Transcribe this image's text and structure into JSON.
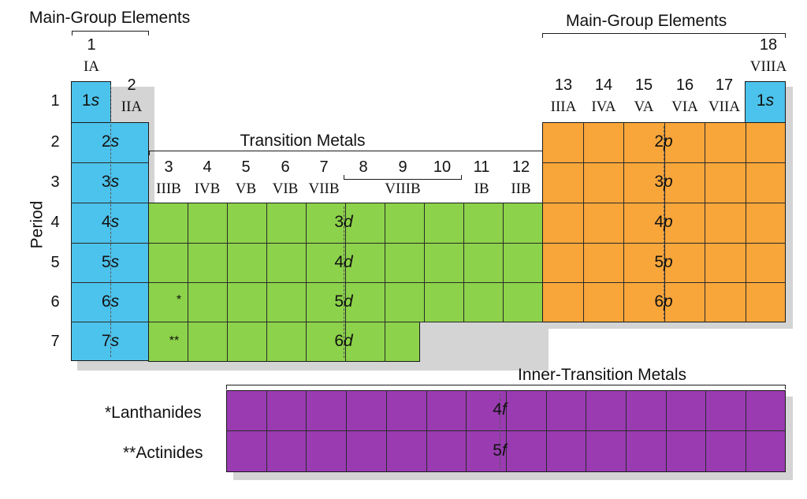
{
  "labels": {
    "main_group_left": "Main-Group Elements",
    "main_group_right": "Main-Group Elements",
    "transition_metals": "Transition Metals",
    "inner_transition": "Inner-Transition Metals",
    "period_axis": "Period",
    "lanthanides": "*Lanthanides",
    "actinides": "**Actinides",
    "lanthanide_marker": "*",
    "actinide_marker": "**"
  },
  "groups": [
    {
      "num": "1",
      "roman": "IA"
    },
    {
      "num": "2",
      "roman": "IIA"
    },
    {
      "num": "3",
      "roman": "IIIB"
    },
    {
      "num": "4",
      "roman": "IVB"
    },
    {
      "num": "5",
      "roman": "VB"
    },
    {
      "num": "6",
      "roman": "VIB"
    },
    {
      "num": "7",
      "roman": "VIIB"
    },
    {
      "num": "8",
      "roman": ""
    },
    {
      "num": "9",
      "roman": ""
    },
    {
      "num": "10",
      "roman": ""
    },
    {
      "num": "11",
      "roman": "IB"
    },
    {
      "num": "12",
      "roman": "IIB"
    },
    {
      "num": "13",
      "roman": "IIIA"
    },
    {
      "num": "14",
      "roman": "IVA"
    },
    {
      "num": "15",
      "roman": "VA"
    },
    {
      "num": "16",
      "roman": "VIA"
    },
    {
      "num": "17",
      "roman": "VIIA"
    },
    {
      "num": "18",
      "roman": "VIIIA"
    }
  ],
  "group_8_10_roman": "VIIIB",
  "periods": [
    "1",
    "2",
    "3",
    "4",
    "5",
    "6",
    "7"
  ],
  "s_block": {
    "label_prefix": [
      "1",
      "2",
      "3",
      "4",
      "5",
      "6",
      "7"
    ],
    "orbital": "s",
    "color": "#4cc3ec"
  },
  "he_block": {
    "label_prefix": "1",
    "orbital": "s",
    "color": "#4cc3ec"
  },
  "d_block": {
    "label_prefix": [
      "3",
      "4",
      "5",
      "6"
    ],
    "orbital": "d",
    "color": "#8cd24a"
  },
  "p_block": {
    "label_prefix": [
      "2",
      "3",
      "4",
      "5",
      "6"
    ],
    "orbital": "p",
    "color": "#f8a53a"
  },
  "f_block": {
    "label_prefix": [
      "4",
      "5"
    ],
    "orbital": "f",
    "color": "#9a3bb2"
  }
}
